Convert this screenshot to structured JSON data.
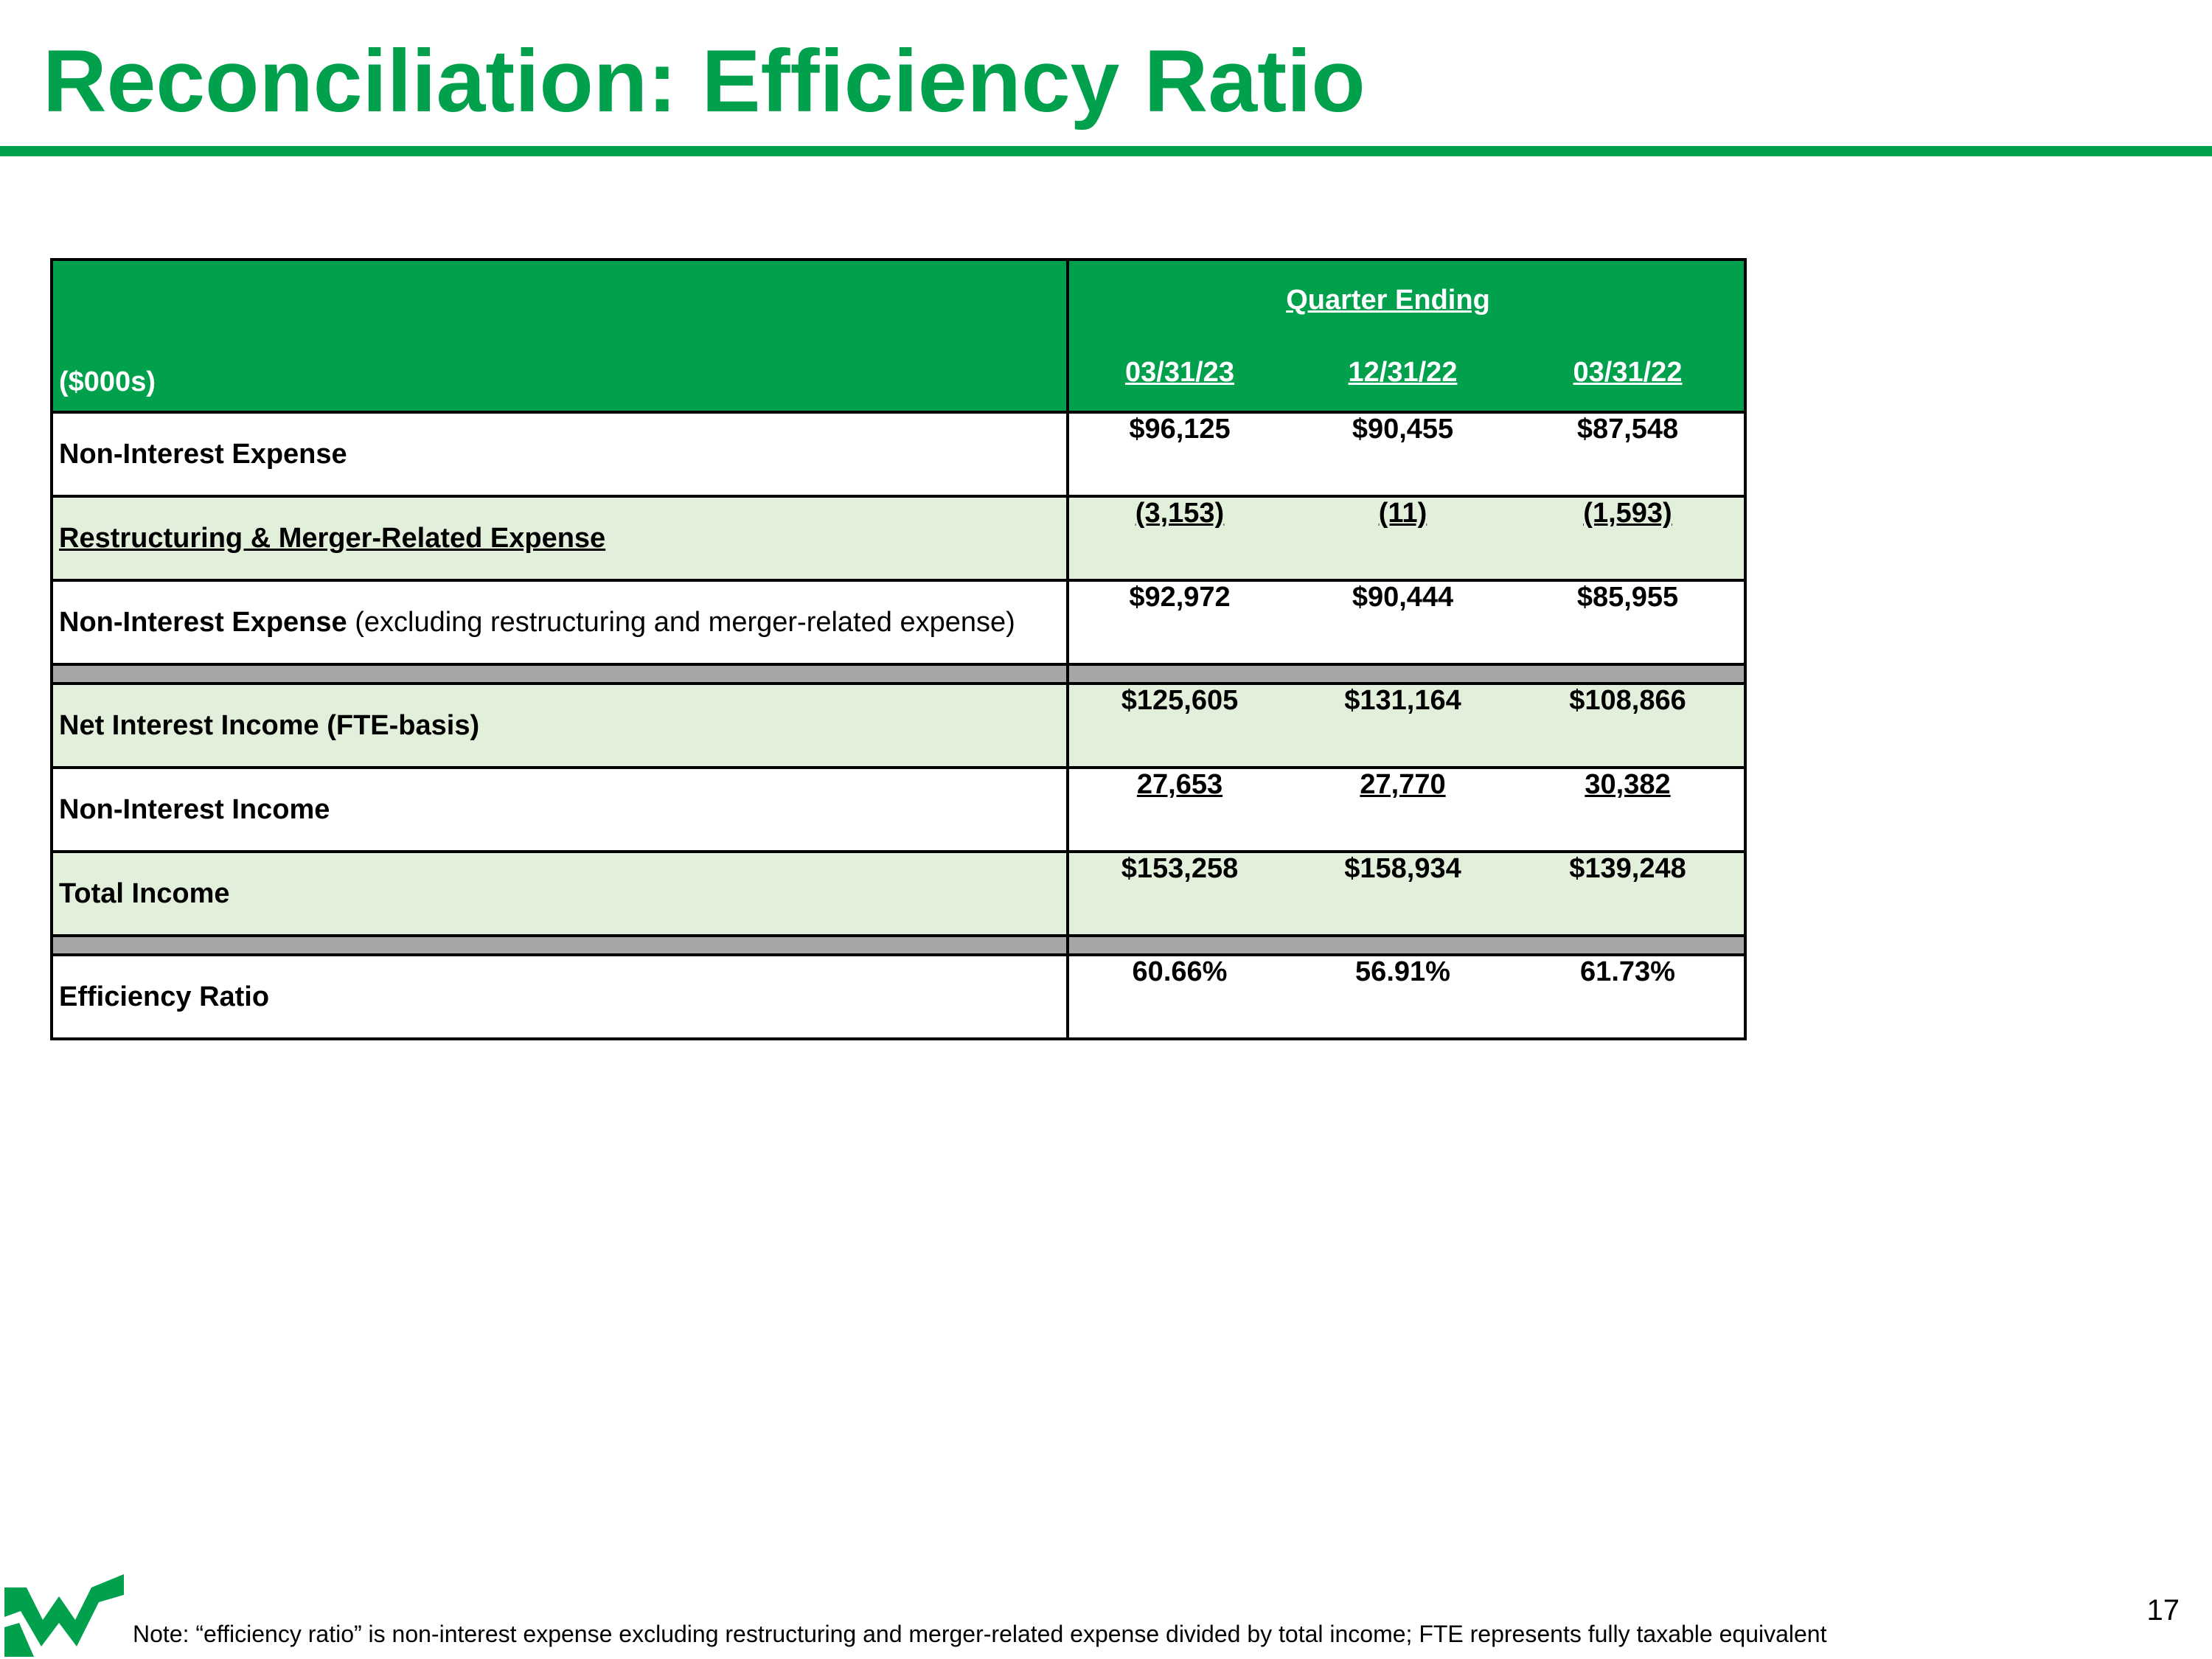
{
  "title": "Reconciliation: Efficiency Ratio",
  "table": {
    "unit_label": "($000s)",
    "group_header": "Quarter Ending",
    "periods": [
      "03/31/23",
      "12/31/22",
      "03/31/22"
    ],
    "rows": [
      {
        "label": "Non-Interest Expense",
        "label_suffix": "",
        "values": [
          "$96,125",
          "$90,455",
          "$87,548"
        ]
      },
      {
        "label": "Restructuring & Merger-Related Expense",
        "label_suffix": "",
        "values": [
          "(3,153)",
          "(11)",
          "(1,593)"
        ]
      },
      {
        "label": "Non-Interest Expense",
        "label_suffix": " (excluding restructuring and merger-related expense)",
        "values": [
          "$92,972",
          "$90,444",
          "$85,955"
        ]
      },
      {
        "label": "Net Interest Income (FTE-basis)",
        "label_suffix": "",
        "values": [
          "$125,605",
          "$131,164",
          "$108,866"
        ]
      },
      {
        "label": "Non-Interest Income",
        "label_suffix": "",
        "values": [
          "27,653",
          "27,770",
          "30,382"
        ]
      },
      {
        "label": "Total Income",
        "label_suffix": "",
        "values": [
          "$153,258",
          "$158,934",
          "$139,248"
        ]
      },
      {
        "label": "Efficiency Ratio",
        "label_suffix": "",
        "values": [
          "60.66%",
          "56.91%",
          "61.73%"
        ]
      }
    ]
  },
  "footer": {
    "note": "Note: “efficiency ratio” is non-interest expense excluding restructuring and merger-related expense divided by total income; FTE represents fully taxable equivalent",
    "page_number": "17"
  },
  "colors": {
    "brand_green": "#00a04c",
    "row_shade": "#e2efda",
    "separator_gray": "#a6a6a6"
  },
  "icons": {
    "logo": "w-logo-icon"
  }
}
